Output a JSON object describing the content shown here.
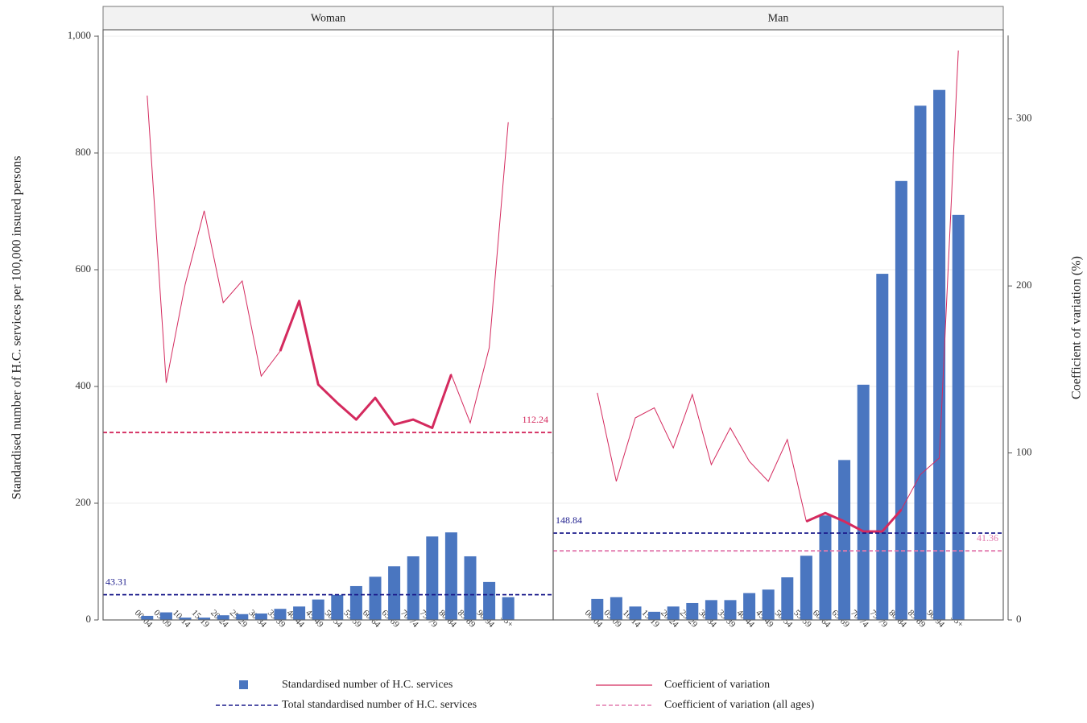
{
  "chart_data": [
    {
      "type": "bar",
      "title": "Woman",
      "ylabel": "Standardised number of H.C. services per 100,000 insured persons",
      "categories": [
        "00-04",
        "05-09",
        "10-14",
        "15-19",
        "20-24",
        "25-29",
        "30-34",
        "35-39",
        "40-44",
        "45-49",
        "50-54",
        "55-59",
        "60-64",
        "65-69",
        "70-74",
        "75-79",
        "80-84",
        "85-89",
        "90-94",
        "95+"
      ],
      "series": [
        {
          "name": "Standardised number of H.C. services",
          "color": "#4a76c0",
          "values": [
            7,
            13,
            4,
            4,
            8,
            10,
            11,
            19,
            23,
            35,
            43,
            58,
            74,
            92,
            109,
            143,
            150,
            109,
            65,
            39
          ]
        },
        {
          "name": "Coefficient of variation",
          "color": "#d42a5e",
          "axis": "y2",
          "emphasis": [
            "35-39",
            "80-84"
          ],
          "values": [
            314,
            142,
            201,
            245,
            190,
            203,
            146,
            161,
            191,
            141,
            130,
            120,
            133,
            117,
            120,
            115,
            147,
            118,
            163,
            298
          ]
        }
      ],
      "reference_lines": [
        {
          "name": "Total standardised number of H.C. services",
          "value": 43.31,
          "color": "#1c1c8c"
        },
        {
          "name": "Coefficient of variation (all ages)",
          "value": 112.24,
          "axis": "y2",
          "color": "#d42a5e"
        }
      ],
      "ylim": [
        0,
        1000
      ],
      "yticks": [
        0,
        200,
        400,
        600,
        800,
        {
          "value": 1000,
          "label": "1,000"
        }
      ],
      "y2lim": [
        0,
        350
      ],
      "y2ticks": [
        0,
        100,
        200,
        300
      ],
      "grid": true
    },
    {
      "type": "bar",
      "title": "Man",
      "y2label": "Coefficient of variation (%)",
      "categories": [
        "00-04",
        "05-09",
        "10-14",
        "15-19",
        "20-24",
        "25-29",
        "30-34",
        "35-39",
        "40-44",
        "45-49",
        "50-54",
        "55-59",
        "60-64",
        "65-69",
        "70-74",
        "75-79",
        "80-84",
        "85-89",
        "90-94",
        "95+"
      ],
      "series": [
        {
          "name": "Standardised number of H.C. services",
          "color": "#4a76c0",
          "values": [
            36,
            39,
            23,
            14,
            23,
            29,
            34,
            34,
            46,
            52,
            73,
            110,
            179,
            274,
            403,
            593,
            752,
            881,
            908,
            694
          ]
        },
        {
          "name": "Coefficient of variation",
          "color": "#d42a5e",
          "axis": "y2",
          "emphasis": [
            "55-59",
            "80-84"
          ],
          "values": [
            136,
            83,
            121,
            127,
            103,
            135,
            93,
            115,
            95,
            83,
            108,
            59,
            64,
            59,
            53,
            53,
            66,
            87,
            97,
            341
          ]
        }
      ],
      "reference_lines": [
        {
          "name": "Total standardised number of H.C. services",
          "value": 148.84,
          "color": "#1c1c8c"
        },
        {
          "name": "Coefficient of variation (all ages)",
          "value": 41.36,
          "axis": "y2",
          "color": "#e27aae"
        }
      ],
      "ylim": [
        0,
        1000
      ],
      "yticks": [
        0,
        200,
        400,
        600,
        800,
        {
          "value": 1000,
          "label": "1,000"
        }
      ],
      "y2lim": [
        0,
        350
      ],
      "y2ticks": [
        0,
        100,
        200,
        300
      ],
      "grid": true
    }
  ]
}
